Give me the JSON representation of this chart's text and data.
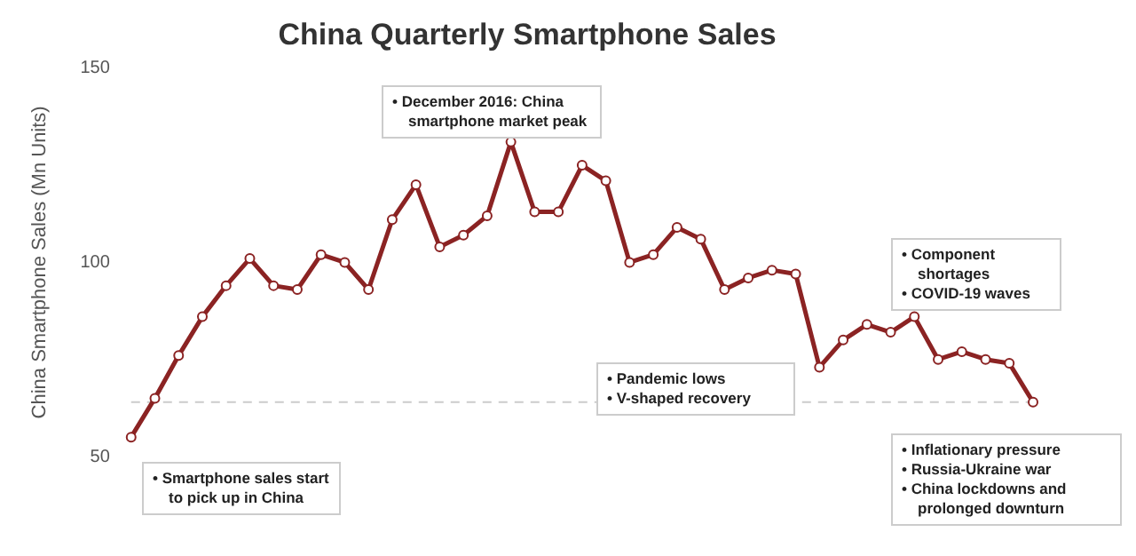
{
  "chart_data": {
    "type": "line",
    "title": "China Quarterly Smartphone Sales",
    "ylabel": "China Smartphone Sales (Mn Units)",
    "categories": [
      null,
      null,
      null,
      null,
      null,
      null,
      null,
      null,
      null,
      null,
      null,
      null,
      null,
      null,
      null,
      null,
      null,
      null,
      null,
      null,
      null,
      null,
      null,
      null,
      null,
      null,
      null,
      null,
      null,
      null,
      null,
      null,
      null,
      null,
      null,
      null,
      null,
      null,
      null
    ],
    "series": [
      {
        "color": "#8b2323",
        "values": [
          55,
          65,
          76,
          86,
          94,
          101,
          94,
          93,
          102,
          100,
          93,
          111,
          120,
          104,
          107,
          112,
          131,
          113,
          113,
          125,
          121,
          100,
          102,
          109,
          106,
          93,
          96,
          98,
          97,
          73,
          80,
          84,
          82,
          86,
          75,
          77,
          75,
          74,
          64
        ]
      }
    ],
    "ylim": [
      50,
      150
    ],
    "yticks": [
      50,
      100,
      150
    ],
    "grid": false,
    "tick_labels": "y",
    "marker": "circle",
    "line_style": "solid",
    "legend": false,
    "ref_lines": [
      {
        "axis": "y",
        "value": 64,
        "color": "#cccccc",
        "line_style": "dashed"
      }
    ],
    "annotations": [
      "• Smartphone sales start to pick up in China",
      "• December 2016: China smartphone market peak",
      "• Pandemic lows\n• V-shaped recovery",
      "• Component shortages\n• COVID-19 waves",
      "• Inflationary pressure\n• Russia-Ukraine war\n• China lockdowns and prolonged downturn"
    ]
  }
}
